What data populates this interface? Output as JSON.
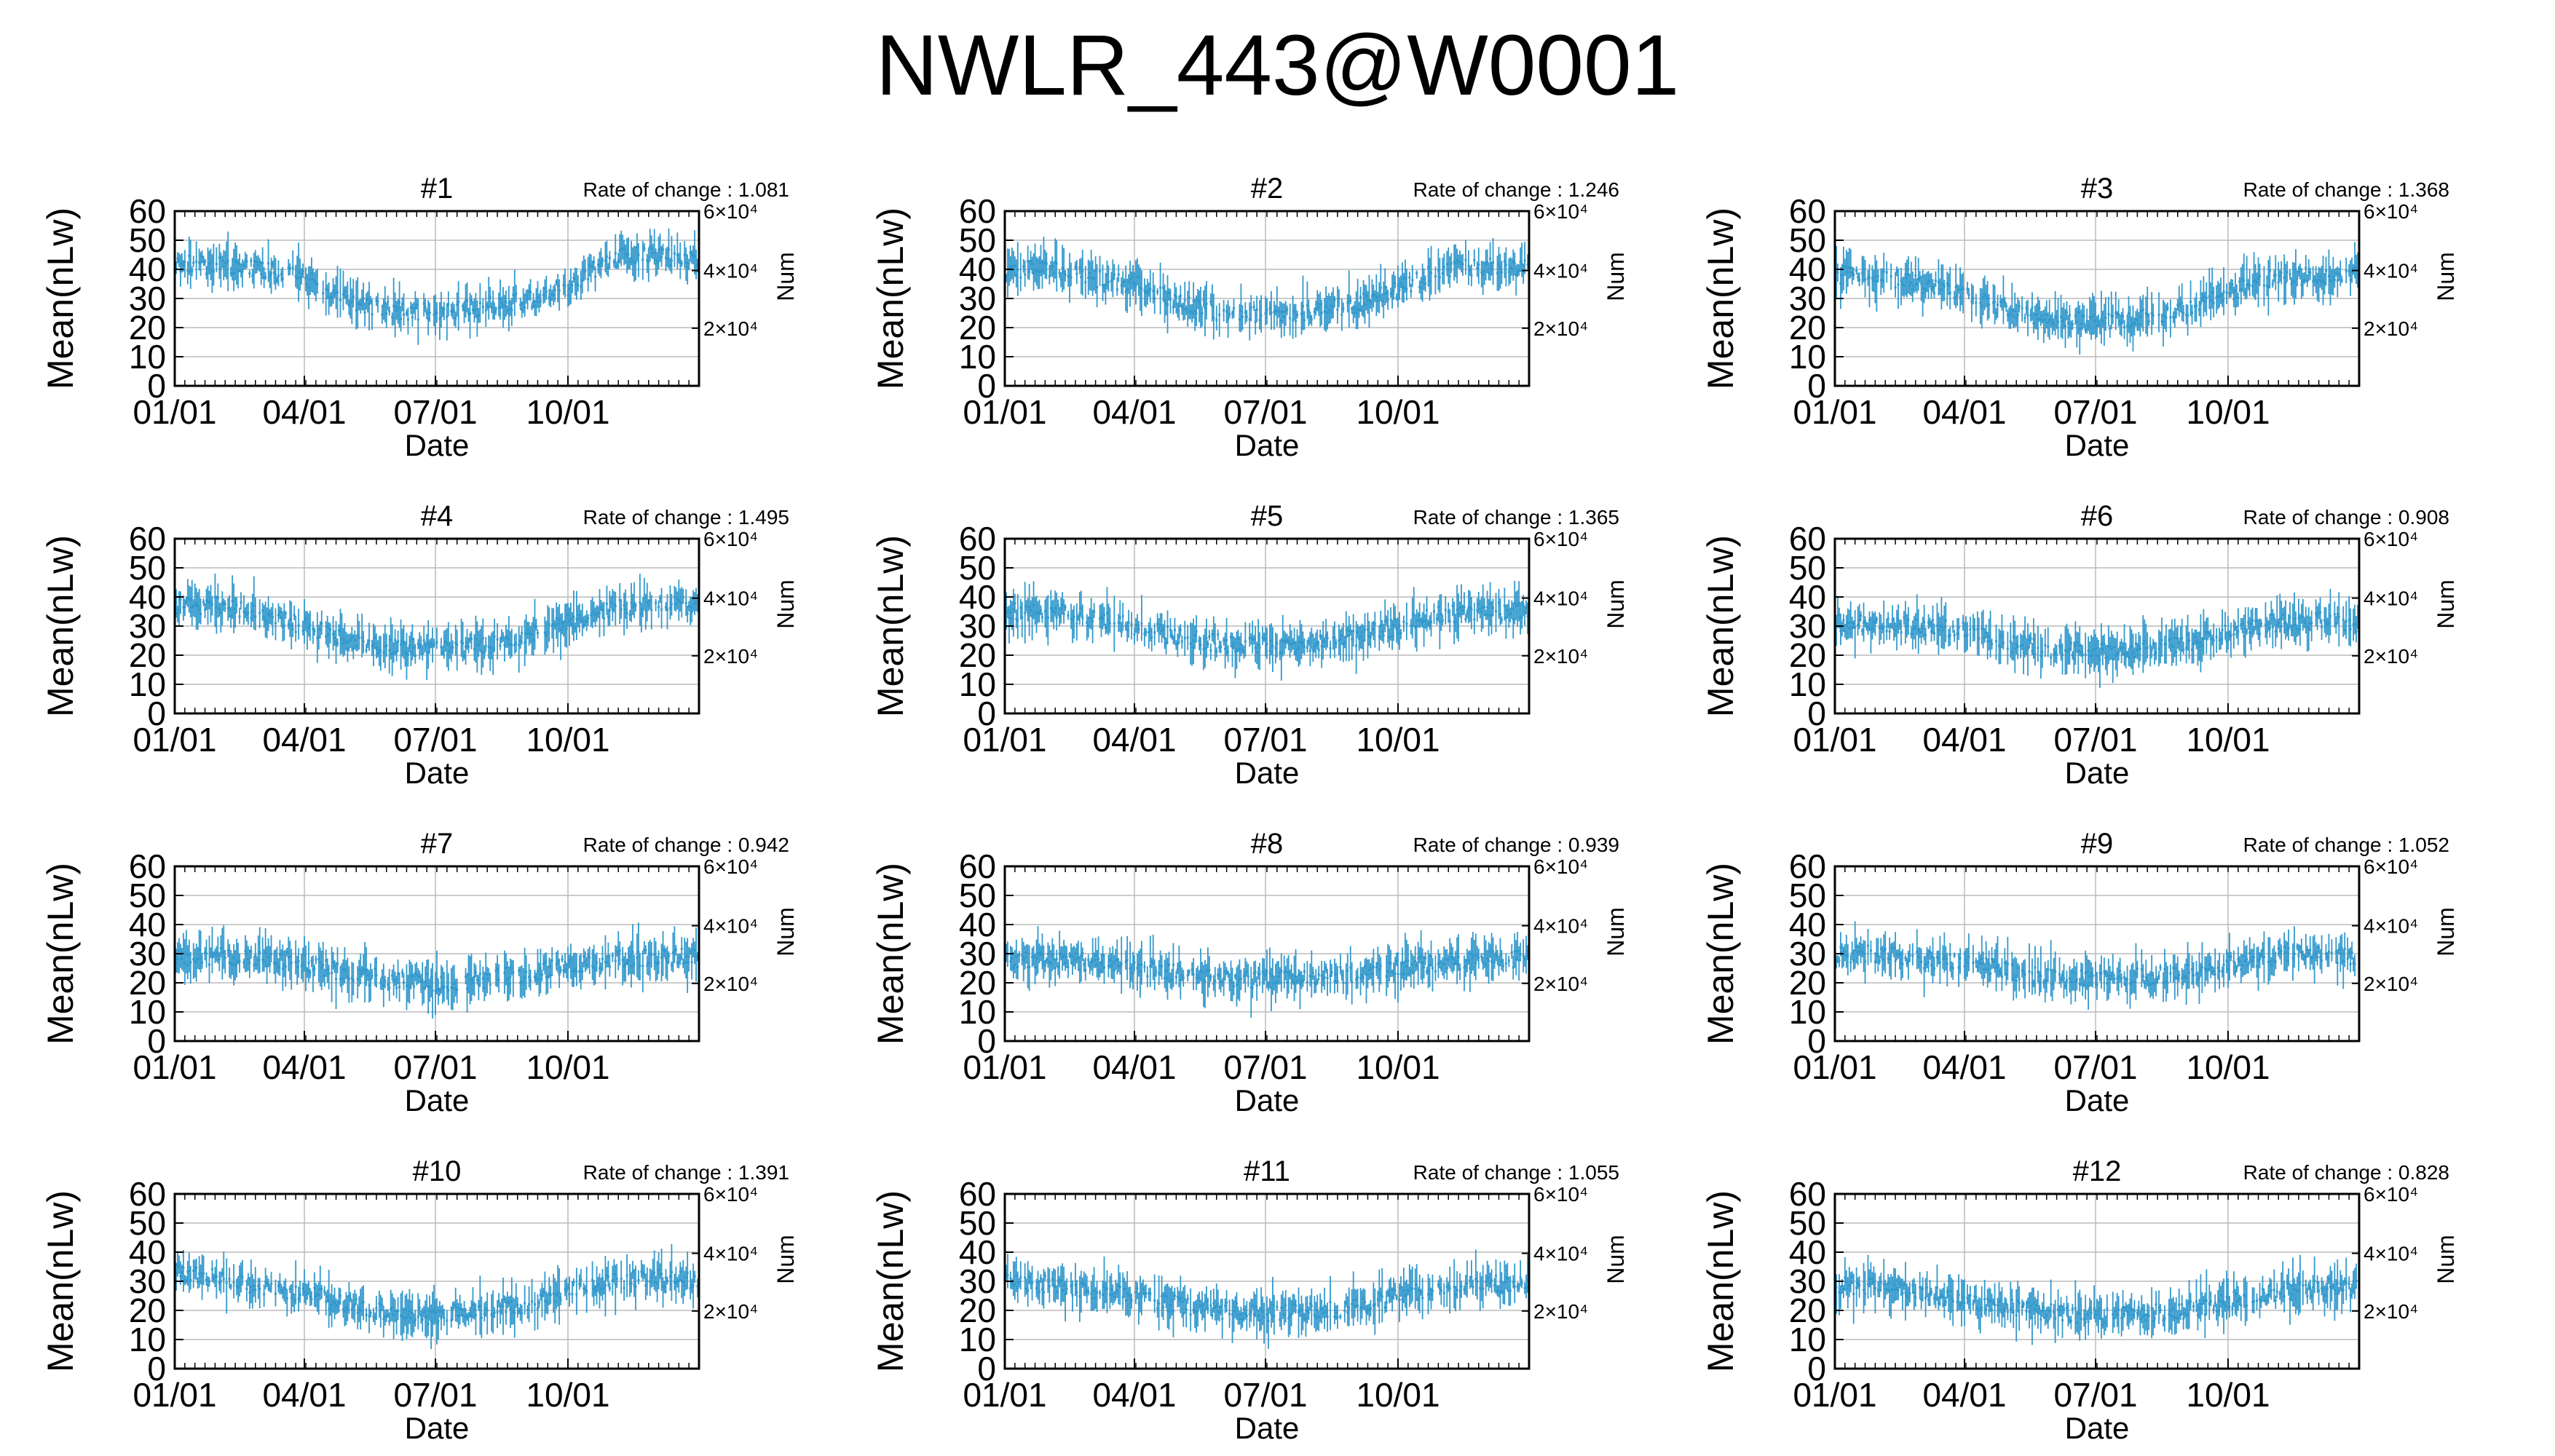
{
  "title": "NWLR_443@W0001",
  "colors": {
    "series": "#3399cc",
    "grid": "#bbbbbb",
    "axis": "#000000"
  },
  "chart_data": [
    {
      "type": "line",
      "panel": "#1",
      "rate_label": "Rate of change : 1.081",
      "xlabel": "Date",
      "ylabel": "Mean(nLw)",
      "y2label": "Num",
      "x_tick_labels": [
        "01/01",
        "04/01",
        "07/01",
        "10/01"
      ],
      "y_tick_labels": [
        "0",
        "10",
        "20",
        "30",
        "40",
        "50",
        "60"
      ],
      "y2_tick_labels": [
        "2×10⁴",
        "4×10⁴",
        "6×10⁴"
      ],
      "ylim": [
        0,
        60
      ],
      "grid": true,
      "xlim": [
        "01/01",
        "12/31"
      ],
      "series": [
        {
          "x": [
            "01/01",
            "02/01",
            "03/01",
            "04/01",
            "05/01",
            "06/01",
            "07/01",
            "08/01",
            "09/01",
            "10/01",
            "11/01",
            "12/01",
            "12/31"
          ],
          "values": [
            42,
            41,
            40,
            37,
            29,
            26,
            25,
            27,
            29,
            34,
            44,
            45,
            43
          ]
        }
      ]
    },
    {
      "type": "line",
      "panel": "#2",
      "rate_label": "Rate of change : 1.246",
      "xlabel": "Date",
      "ylabel": "Mean(nLw)",
      "y2label": "Num",
      "x_tick_labels": [
        "01/01",
        "04/01",
        "07/01",
        "10/01"
      ],
      "y_tick_labels": [
        "0",
        "10",
        "20",
        "30",
        "40",
        "50",
        "60"
      ],
      "y2_tick_labels": [
        "2×10⁴",
        "4×10⁴",
        "6×10⁴"
      ],
      "ylim": [
        0,
        60
      ],
      "grid": true,
      "xlim": [
        "01/01",
        "12/31"
      ],
      "series": [
        {
          "x": [
            "01/01",
            "02/01",
            "03/01",
            "04/01",
            "05/01",
            "06/01",
            "07/01",
            "08/01",
            "09/01",
            "10/01",
            "11/01",
            "12/01",
            "12/31"
          ],
          "values": [
            40,
            40,
            37,
            35,
            29,
            25,
            24,
            25,
            28,
            33,
            40,
            41,
            40
          ]
        }
      ]
    },
    {
      "type": "line",
      "panel": "#3",
      "rate_label": "Rate of change : 1.368",
      "xlabel": "Date",
      "ylabel": "Mean(nLw)",
      "y2label": "Num",
      "x_tick_labels": [
        "01/01",
        "04/01",
        "07/01",
        "10/01"
      ],
      "y_tick_labels": [
        "0",
        "10",
        "20",
        "30",
        "40",
        "50",
        "60"
      ],
      "y2_tick_labels": [
        "2×10⁴",
        "4×10⁴",
        "6×10⁴"
      ],
      "ylim": [
        0,
        60
      ],
      "grid": true,
      "xlim": [
        "01/01",
        "12/31"
      ],
      "series": [
        {
          "x": [
            "01/01",
            "02/01",
            "03/01",
            "04/01",
            "05/01",
            "06/01",
            "07/01",
            "08/01",
            "09/01",
            "10/01",
            "11/01",
            "12/01",
            "12/31"
          ],
          "values": [
            38,
            38,
            35,
            31,
            26,
            23,
            22,
            23,
            26,
            32,
            37,
            38,
            38
          ]
        }
      ]
    },
    {
      "type": "line",
      "panel": "#4",
      "rate_label": "Rate of change : 1.495",
      "xlabel": "Date",
      "ylabel": "Mean(nLw)",
      "y2label": "Num",
      "x_tick_labels": [
        "01/01",
        "04/01",
        "07/01",
        "10/01"
      ],
      "y_tick_labels": [
        "0",
        "10",
        "20",
        "30",
        "40",
        "50",
        "60"
      ],
      "y2_tick_labels": [
        "2×10⁴",
        "4×10⁴",
        "6×10⁴"
      ],
      "ylim": [
        0,
        60
      ],
      "grid": true,
      "xlim": [
        "01/01",
        "12/31"
      ],
      "series": [
        {
          "x": [
            "01/01",
            "02/01",
            "03/01",
            "04/01",
            "05/01",
            "06/01",
            "07/01",
            "08/01",
            "09/01",
            "10/01",
            "11/01",
            "12/01",
            "12/31"
          ],
          "values": [
            37,
            37,
            34,
            30,
            25,
            23,
            22,
            23,
            26,
            31,
            36,
            37,
            37
          ]
        }
      ]
    },
    {
      "type": "line",
      "panel": "#5",
      "rate_label": "Rate of change : 1.365",
      "xlabel": "Date",
      "ylabel": "Mean(nLw)",
      "y2label": "Num",
      "x_tick_labels": [
        "01/01",
        "04/01",
        "07/01",
        "10/01"
      ],
      "y_tick_labels": [
        "0",
        "10",
        "20",
        "30",
        "40",
        "50",
        "60"
      ],
      "y2_tick_labels": [
        "2×10⁴",
        "4×10⁴",
        "6×10⁴"
      ],
      "ylim": [
        0,
        60
      ],
      "grid": true,
      "xlim": [
        "01/01",
        "12/31"
      ],
      "series": [
        {
          "x": [
            "01/01",
            "02/01",
            "03/01",
            "04/01",
            "05/01",
            "06/01",
            "07/01",
            "08/01",
            "09/01",
            "10/01",
            "11/01",
            "12/01",
            "12/31"
          ],
          "values": [
            35,
            35,
            33,
            30,
            26,
            24,
            23,
            24,
            26,
            30,
            34,
            35,
            35
          ]
        }
      ]
    },
    {
      "type": "line",
      "panel": "#6",
      "rate_label": "Rate of change : 0.908",
      "xlabel": "Date",
      "ylabel": "Mean(nLw)",
      "y2label": "Num",
      "x_tick_labels": [
        "01/01",
        "04/01",
        "07/01",
        "10/01"
      ],
      "y_tick_labels": [
        "0",
        "10",
        "20",
        "30",
        "40",
        "50",
        "60"
      ],
      "y2_tick_labels": [
        "2×10⁴",
        "4×10⁴",
        "6×10⁴"
      ],
      "ylim": [
        0,
        60
      ],
      "grid": true,
      "xlim": [
        "01/01",
        "12/31"
      ],
      "series": [
        {
          "x": [
            "01/01",
            "02/01",
            "03/01",
            "04/01",
            "05/01",
            "06/01",
            "07/01",
            "08/01",
            "09/01",
            "10/01",
            "11/01",
            "12/01",
            "12/31"
          ],
          "values": [
            31,
            31,
            30,
            29,
            24,
            22,
            21,
            22,
            24,
            28,
            31,
            32,
            31
          ]
        }
      ]
    },
    {
      "type": "line",
      "panel": "#7",
      "rate_label": "Rate of change : 0.942",
      "xlabel": "Date",
      "ylabel": "Mean(nLw)",
      "y2label": "Num",
      "x_tick_labels": [
        "01/01",
        "04/01",
        "07/01",
        "10/01"
      ],
      "y_tick_labels": [
        "0",
        "10",
        "20",
        "30",
        "40",
        "50",
        "60"
      ],
      "y2_tick_labels": [
        "2×10⁴",
        "4×10⁴",
        "6×10⁴"
      ],
      "ylim": [
        0,
        60
      ],
      "grid": true,
      "xlim": [
        "01/01",
        "12/31"
      ],
      "series": [
        {
          "x": [
            "01/01",
            "02/01",
            "03/01",
            "04/01",
            "05/01",
            "06/01",
            "07/01",
            "08/01",
            "09/01",
            "10/01",
            "11/01",
            "12/01",
            "12/31"
          ],
          "values": [
            29,
            29,
            28,
            27,
            23,
            21,
            20,
            21,
            23,
            26,
            28,
            29,
            29
          ]
        }
      ]
    },
    {
      "type": "line",
      "panel": "#8",
      "rate_label": "Rate of change : 0.939",
      "xlabel": "Date",
      "ylabel": "Mean(nLw)",
      "y2label": "Num",
      "x_tick_labels": [
        "01/01",
        "04/01",
        "07/01",
        "10/01"
      ],
      "y_tick_labels": [
        "0",
        "10",
        "20",
        "30",
        "40",
        "50",
        "60"
      ],
      "y2_tick_labels": [
        "2×10⁴",
        "4×10⁴",
        "6×10⁴"
      ],
      "ylim": [
        0,
        60
      ],
      "grid": true,
      "xlim": [
        "01/01",
        "12/31"
      ],
      "series": [
        {
          "x": [
            "01/01",
            "02/01",
            "03/01",
            "04/01",
            "05/01",
            "06/01",
            "07/01",
            "08/01",
            "09/01",
            "10/01",
            "11/01",
            "12/01",
            "12/31"
          ],
          "values": [
            28,
            28,
            27,
            26,
            23,
            22,
            21,
            22,
            23,
            25,
            27,
            28,
            28
          ]
        }
      ]
    },
    {
      "type": "line",
      "panel": "#9",
      "rate_label": "Rate of change : 1.052",
      "xlabel": "Date",
      "ylabel": "Mean(nLw)",
      "y2label": "Num",
      "x_tick_labels": [
        "01/01",
        "04/01",
        "07/01",
        "10/01"
      ],
      "y_tick_labels": [
        "0",
        "10",
        "20",
        "30",
        "40",
        "50",
        "60"
      ],
      "y2_tick_labels": [
        "2×10⁴",
        "4×10⁴",
        "6×10⁴"
      ],
      "ylim": [
        0,
        60
      ],
      "grid": true,
      "xlim": [
        "01/01",
        "12/31"
      ],
      "series": [
        {
          "x": [
            "01/01",
            "02/01",
            "03/01",
            "04/01",
            "05/01",
            "06/01",
            "07/01",
            "08/01",
            "09/01",
            "10/01",
            "11/01",
            "12/01",
            "12/31"
          ],
          "values": [
            30,
            30,
            28,
            27,
            24,
            22,
            21,
            22,
            23,
            26,
            29,
            30,
            29
          ]
        }
      ]
    },
    {
      "type": "line",
      "panel": "#10",
      "rate_label": "Rate of change : 1.391",
      "xlabel": "Date",
      "ylabel": "Mean(nLw)",
      "y2label": "Num",
      "x_tick_labels": [
        "01/01",
        "04/01",
        "07/01",
        "10/01"
      ],
      "y_tick_labels": [
        "0",
        "10",
        "20",
        "30",
        "40",
        "50",
        "60"
      ],
      "y2_tick_labels": [
        "2×10⁴",
        "4×10⁴",
        "6×10⁴"
      ],
      "ylim": [
        0,
        60
      ],
      "grid": true,
      "xlim": [
        "01/01",
        "12/31"
      ],
      "series": [
        {
          "x": [
            "01/01",
            "02/01",
            "03/01",
            "04/01",
            "05/01",
            "06/01",
            "07/01",
            "08/01",
            "09/01",
            "10/01",
            "11/01",
            "12/01",
            "12/31"
          ],
          "values": [
            33,
            31,
            28,
            26,
            22,
            19,
            18,
            20,
            22,
            27,
            30,
            31,
            30
          ]
        }
      ]
    },
    {
      "type": "line",
      "panel": "#11",
      "rate_label": "Rate of change : 1.055",
      "xlabel": "Date",
      "ylabel": "Mean(nLw)",
      "y2label": "Num",
      "x_tick_labels": [
        "01/01",
        "04/01",
        "07/01",
        "10/01"
      ],
      "y_tick_labels": [
        "0",
        "10",
        "20",
        "30",
        "40",
        "50",
        "60"
      ],
      "y2_tick_labels": [
        "2×10⁴",
        "4×10⁴",
        "6×10⁴"
      ],
      "ylim": [
        0,
        60
      ],
      "grid": true,
      "xlim": [
        "01/01",
        "12/31"
      ],
      "series": [
        {
          "x": [
            "01/01",
            "02/01",
            "03/01",
            "04/01",
            "05/01",
            "06/01",
            "07/01",
            "08/01",
            "09/01",
            "10/01",
            "11/01",
            "12/01",
            "12/31"
          ],
          "values": [
            30,
            29,
            27,
            25,
            22,
            20,
            19,
            20,
            21,
            25,
            28,
            29,
            29
          ]
        }
      ]
    },
    {
      "type": "line",
      "panel": "#12",
      "rate_label": "Rate of change : 0.828",
      "xlabel": "Date",
      "ylabel": "Mean(nLw)",
      "y2label": "Num",
      "x_tick_labels": [
        "01/01",
        "04/01",
        "07/01",
        "10/01"
      ],
      "y_tick_labels": [
        "0",
        "10",
        "20",
        "30",
        "40",
        "50",
        "60"
      ],
      "y2_tick_labels": [
        "2×10⁴",
        "4×10⁴",
        "6×10⁴"
      ],
      "ylim": [
        0,
        60
      ],
      "grid": true,
      "xlim": [
        "01/01",
        "12/31"
      ],
      "series": [
        {
          "x": [
            "01/01",
            "02/01",
            "03/01",
            "04/01",
            "05/01",
            "06/01",
            "07/01",
            "08/01",
            "09/01",
            "10/01",
            "11/01",
            "12/01",
            "12/31"
          ],
          "values": [
            29,
            28,
            26,
            24,
            21,
            19,
            18,
            19,
            20,
            23,
            26,
            28,
            28
          ]
        }
      ]
    }
  ]
}
